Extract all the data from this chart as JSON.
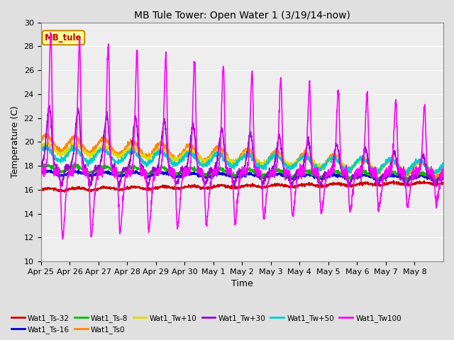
{
  "title": "MB Tule Tower: Open Water 1 (3/19/14-now)",
  "xlabel": "Time",
  "ylabel": "Temperature (C)",
  "ylim": [
    10,
    30
  ],
  "yticks": [
    10,
    12,
    14,
    16,
    18,
    20,
    22,
    24,
    26,
    28,
    30
  ],
  "series": {
    "Wat1_Ts-32": {
      "color": "#cc0000",
      "lw": 1.2
    },
    "Wat1_Ts-16": {
      "color": "#0000cc",
      "lw": 1.2
    },
    "Wat1_Ts-8": {
      "color": "#00bb00",
      "lw": 1.2
    },
    "Wat1_Ts0": {
      "color": "#ff8800",
      "lw": 1.2
    },
    "Wat1_Tw+10": {
      "color": "#dddd00",
      "lw": 1.2
    },
    "Wat1_Tw+30": {
      "color": "#9900cc",
      "lw": 1.2
    },
    "Wat1_Tw+50": {
      "color": "#00cccc",
      "lw": 1.2
    },
    "Wat1_Tw100": {
      "color": "#ff00ff",
      "lw": 1.2
    }
  },
  "legend_box": {
    "text": "MB_tule",
    "facecolor": "#ffff99",
    "edgecolor": "#cc8800"
  },
  "bg_color": "#e0e0e0",
  "plot_bg": "#eeeeee",
  "grid_color": "#ffffff",
  "xtick_labels": [
    "Apr 25",
    "Apr 26",
    "Apr 27",
    "Apr 28",
    "Apr 29",
    "Apr 30",
    "May 1",
    "May 2",
    "May 3",
    "May 4",
    "May 5",
    "May 6",
    "May 7",
    "May 8"
  ]
}
